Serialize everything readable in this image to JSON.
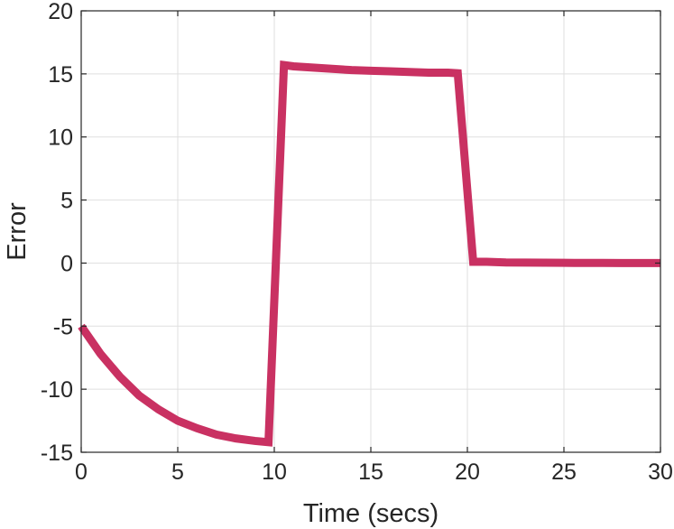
{
  "chart_data": {
    "type": "line",
    "title": "",
    "xlabel": "Time (secs)",
    "ylabel": "Error",
    "xlim": [
      0,
      30
    ],
    "ylim": [
      -15,
      20
    ],
    "xticks": [
      0,
      5,
      10,
      15,
      20,
      25,
      30
    ],
    "yticks": [
      -15,
      -10,
      -5,
      0,
      5,
      10,
      15,
      20
    ],
    "xtick_labels": [
      "0",
      "5",
      "10",
      "15",
      "20",
      "25",
      "30"
    ],
    "ytick_labels": [
      "-15",
      "-10",
      "-5",
      "0",
      "5",
      "10",
      "15",
      "20"
    ],
    "grid": true,
    "legend": "none",
    "series": [
      {
        "color": "#c93162",
        "x": [
          0,
          1,
          2,
          3,
          4,
          5,
          6,
          7,
          8,
          9,
          9.7,
          10.5,
          11,
          12,
          13,
          14,
          15,
          16,
          17,
          18,
          19,
          19.5,
          20.3,
          21,
          22,
          23,
          24,
          25,
          26,
          27,
          28,
          29,
          30
        ],
        "y": [
          -5,
          -7.2,
          -9.0,
          -10.5,
          -11.6,
          -12.5,
          -13.1,
          -13.6,
          -13.9,
          -14.1,
          -14.2,
          15.7,
          15.6,
          15.5,
          15.4,
          15.3,
          15.25,
          15.2,
          15.15,
          15.1,
          15.1,
          15.05,
          0.1,
          0.1,
          0.05,
          0.04,
          0.03,
          0.02,
          0.01,
          0.01,
          0,
          0,
          0
        ]
      }
    ]
  }
}
